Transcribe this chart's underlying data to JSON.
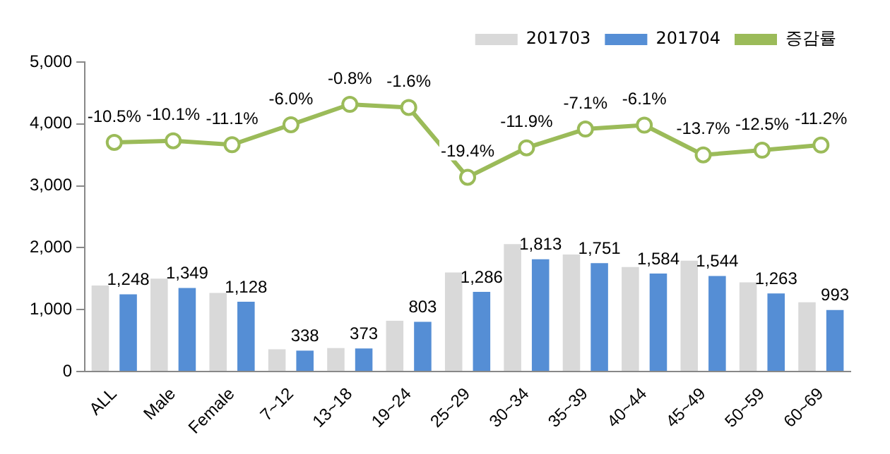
{
  "chart_data": {
    "type": "bar",
    "categories": [
      "ALL",
      "Male",
      "Female",
      "7~12",
      "13~18",
      "19~24",
      "25~29",
      "30~34",
      "35~39",
      "40~44",
      "45~49",
      "50~59",
      "60~69"
    ],
    "series": [
      {
        "name": "201703",
        "color": "#d9d9d9",
        "values": [
          1390,
          1500,
          1270,
          360,
          380,
          820,
          1600,
          2060,
          1890,
          1690,
          1790,
          1440,
          1120
        ]
      },
      {
        "name": "201704",
        "color": "#558ed5",
        "values": [
          1248,
          1349,
          1128,
          338,
          373,
          803,
          1286,
          1813,
          1751,
          1584,
          1544,
          1263,
          993
        ],
        "value_labels": [
          "1,248",
          "1,349",
          "1,128",
          "338",
          "373",
          "803",
          "1,286",
          "1,813",
          "1,751",
          "1,584",
          "1,544",
          "1,263",
          "993"
        ]
      },
      {
        "name": "증감률",
        "type": "line",
        "axis": "y2",
        "color": "#9bbb59",
        "marker": "circle",
        "values": [
          -10.5,
          -10.1,
          -11.1,
          -6.0,
          -0.8,
          -1.6,
          -19.4,
          -11.9,
          -7.1,
          -6.1,
          -13.7,
          -12.5,
          -11.2
        ],
        "value_labels": [
          "-10.5%",
          "-10.1%",
          "-11.1%",
          "-6.0%",
          "-0.8%",
          "-1.6%",
          "-19.4%",
          "-11.9%",
          "-7.1%",
          "-6.1%",
          "-13.7%",
          "-12.5%",
          "-11.2%"
        ]
      }
    ],
    "ylim": [
      0,
      5000
    ],
    "yticks": [
      {
        "value": 0,
        "label": "0"
      },
      {
        "value": 1000,
        "label": "1,000"
      },
      {
        "value": 2000,
        "label": "2,000"
      },
      {
        "value": 3000,
        "label": "3,000"
      },
      {
        "value": 4000,
        "label": "4,000"
      },
      {
        "value": 5000,
        "label": "5,000"
      }
    ],
    "y2lim": [
      -69,
      10
    ],
    "grid": false,
    "legend": "top right"
  }
}
